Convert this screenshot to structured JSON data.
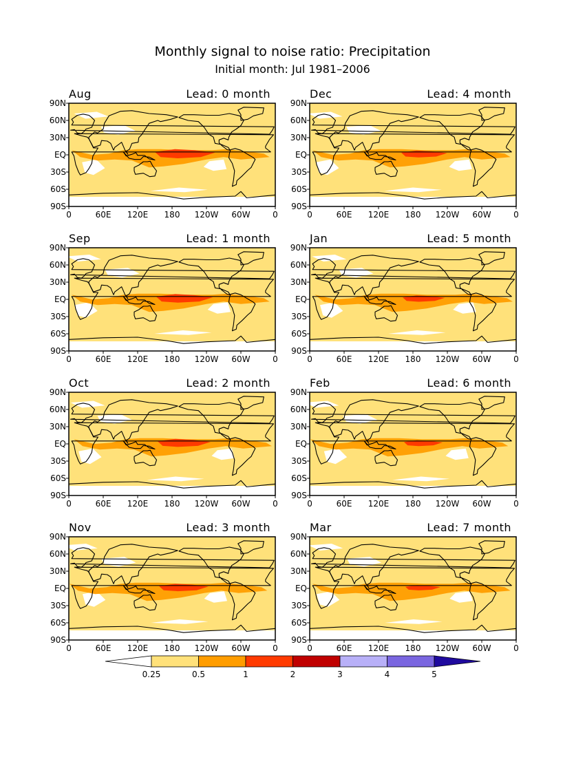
{
  "title": "Monthly signal to noise ratio: Precipitation",
  "subtitle": "Initial month: Jul 1981–2006",
  "lat_labels": [
    "90N",
    "60N",
    "30N",
    "EQ",
    "30S",
    "60S",
    "90S"
  ],
  "lon_labels": [
    "0",
    "60E",
    "120E",
    "180",
    "120W",
    "60W",
    "0"
  ],
  "panels": [
    {
      "month": "Aug",
      "lead": "Lead: 0 month",
      "lead_months": 0
    },
    {
      "month": "Dec",
      "lead": "Lead: 4 month",
      "lead_months": 4
    },
    {
      "month": "Sep",
      "lead": "Lead: 1 month",
      "lead_months": 1
    },
    {
      "month": "Jan",
      "lead": "Lead: 5 month",
      "lead_months": 5
    },
    {
      "month": "Oct",
      "lead": "Lead: 2 month",
      "lead_months": 2
    },
    {
      "month": "Feb",
      "lead": "Lead: 6 month",
      "lead_months": 6
    },
    {
      "month": "Nov",
      "lead": "Lead: 3 month",
      "lead_months": 3
    },
    {
      "month": "Mar",
      "lead": "Lead: 7 month",
      "lead_months": 7
    }
  ],
  "colorbar": {
    "labels": [
      "0.25",
      "0.5",
      "1",
      "2",
      "3",
      "4",
      "5"
    ],
    "colors": [
      "#ffffff",
      "#ffe17a",
      "#ff9d00",
      "#ff3a00",
      "#c00000",
      "#b8b0f8",
      "#7a66e0",
      "#1f0a9e"
    ]
  },
  "fill_colors": {
    "low": "#ffe17a",
    "mid": "#ff9d00",
    "high": "#ff3a00",
    "land_line": "#000000"
  }
}
